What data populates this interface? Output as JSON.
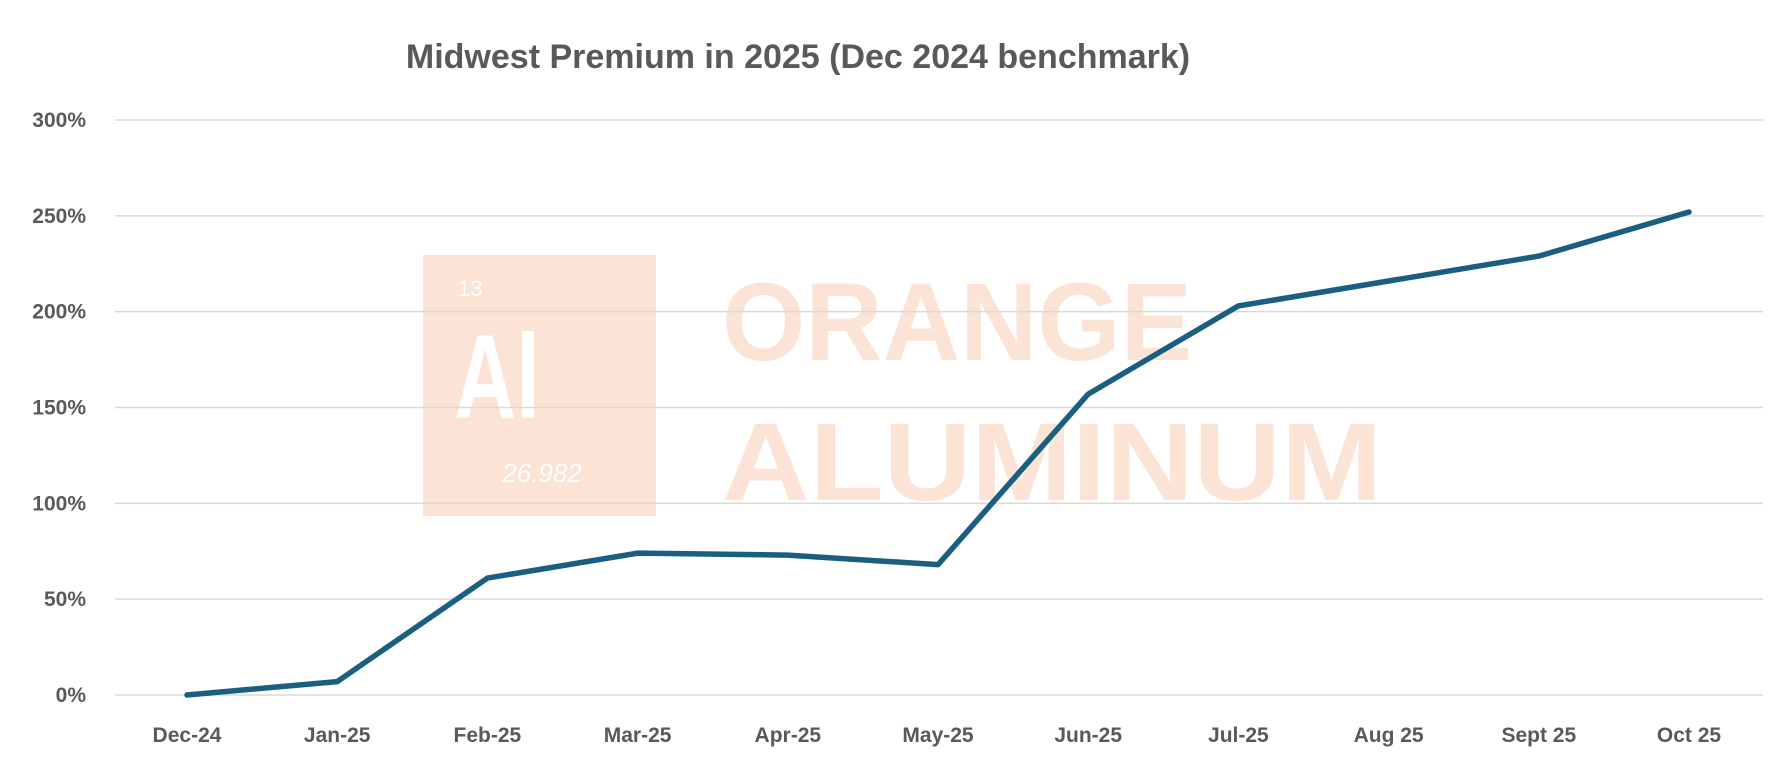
{
  "chart_data": {
    "type": "line",
    "title": "Midwest Premium in 2025 (Dec 2024 benchmark)",
    "xlabel": "",
    "ylabel": "",
    "categories": [
      "Dec-24",
      "Jan-25",
      "Feb-25",
      "Mar-25",
      "Apr-25",
      "May-25",
      "Jun-25",
      "Jul-25",
      "Aug 25",
      "Sept 25",
      "Oct 25"
    ],
    "series": [
      {
        "name": "Midwest Premium",
        "values": [
          0,
          7,
          61,
          74,
          73,
          68,
          157,
          203,
          216,
          229,
          252
        ],
        "color": "#1a5e80"
      }
    ],
    "ylim": [
      0,
      300
    ],
    "yticks": [
      0,
      50,
      100,
      150,
      200,
      250,
      300
    ],
    "ytick_labels": [
      "0%",
      "50%",
      "100%",
      "150%",
      "200%",
      "250%",
      "300%"
    ],
    "grid": true,
    "legend": "none"
  },
  "watermark": {
    "element_number": "13",
    "element_symbol": "Al",
    "atomic_mass": "26.982",
    "line1": "ORANGE",
    "line2": "ALUMINUM",
    "color": "#fbe3d6"
  }
}
